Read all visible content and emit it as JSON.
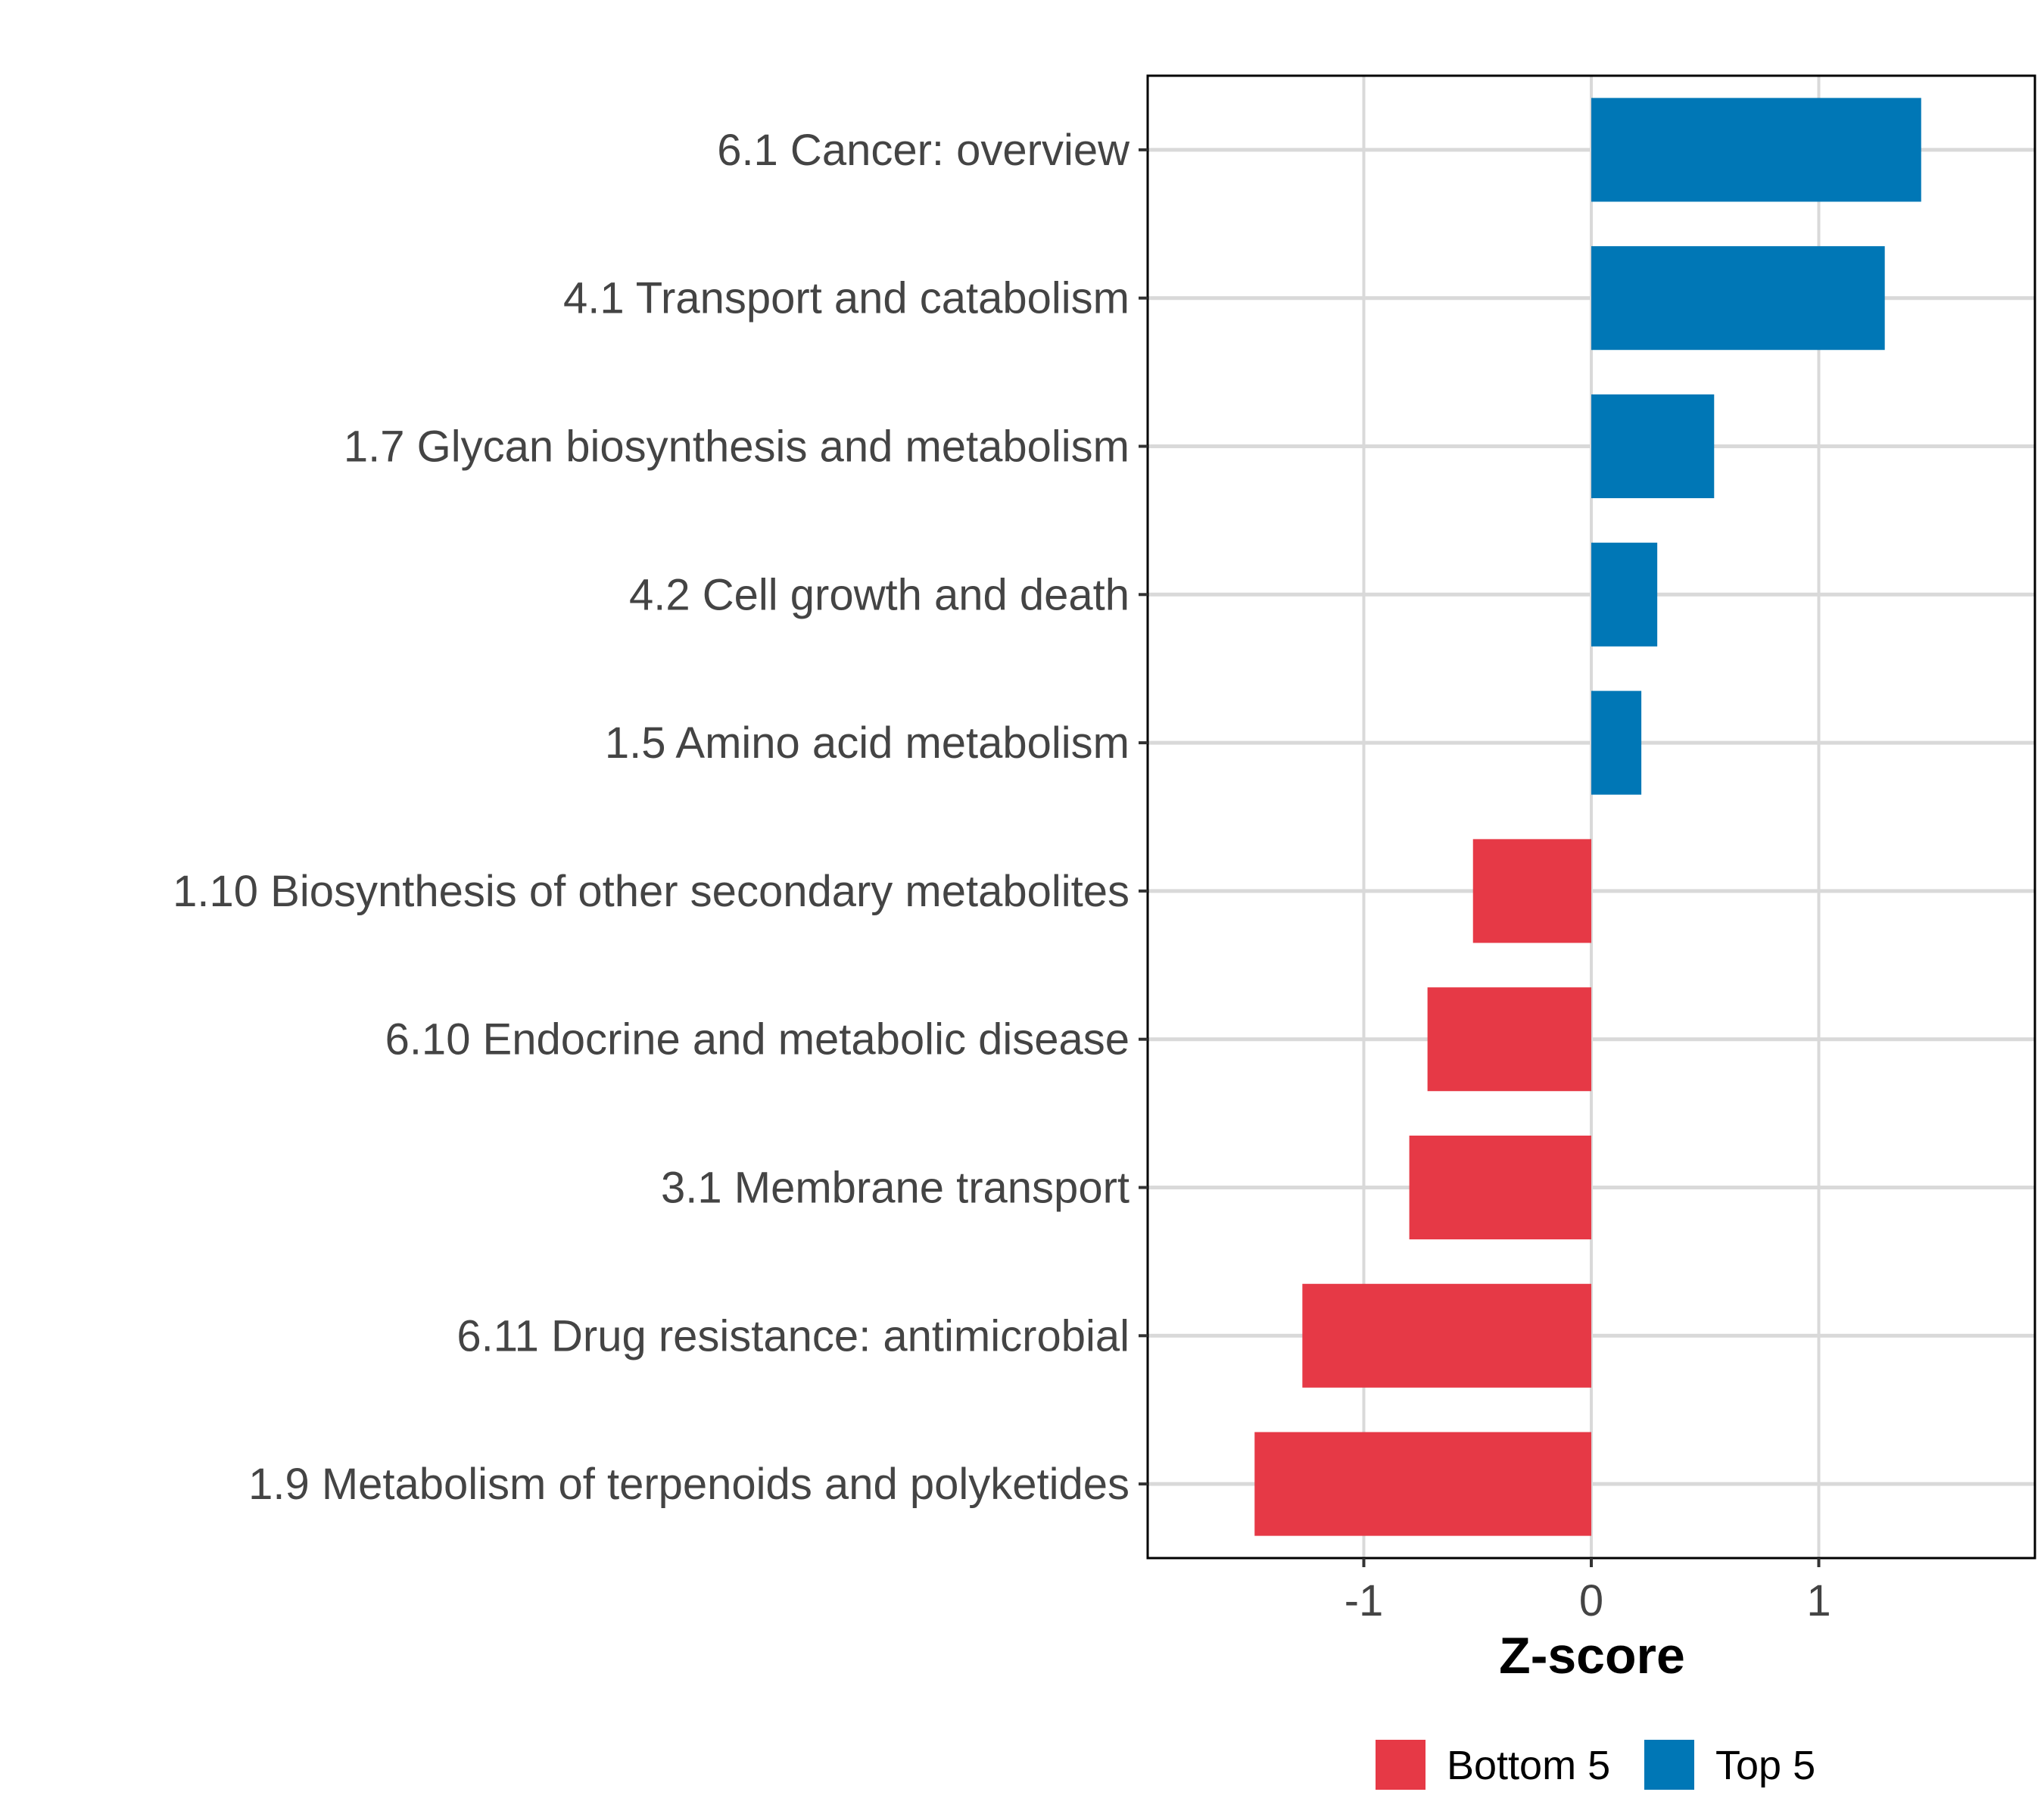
{
  "chart_data": {
    "type": "bar",
    "orientation": "horizontal",
    "title": "",
    "xlabel": "Z-score",
    "ylabel": "",
    "xlim": [
      -1.95,
      1.95
    ],
    "xticks": [
      -1,
      0,
      1
    ],
    "xtick_labels": [
      "-1",
      "0",
      "1"
    ],
    "grid": true,
    "categories": [
      "6.1 Cancer: overview",
      "4.1 Transport and catabolism",
      "1.7 Glycan biosynthesis and metabolism",
      "4.2 Cell growth and death",
      "1.5 Amino acid metabolism",
      "1.10 Biosynthesis of other secondary metabolites",
      "6.10 Endocrine and metabolic disease",
      "3.1 Membrane transport",
      "6.11 Drug resistance: antimicrobial",
      "1.9 Metabolism of terpenoids and polyketides"
    ],
    "values": [
      1.45,
      1.29,
      0.54,
      0.29,
      0.22,
      -0.52,
      -0.72,
      -0.8,
      -1.27,
      -1.48
    ],
    "groups": [
      "Top 5",
      "Top 5",
      "Top 5",
      "Top 5",
      "Top 5",
      "Bottom 5",
      "Bottom 5",
      "Bottom 5",
      "Bottom 5",
      "Bottom 5"
    ],
    "legend": {
      "position": "bottom",
      "entries": [
        {
          "label": "Bottom 5",
          "color": "#E63946"
        },
        {
          "label": "Top 5",
          "color": "#0077B6"
        }
      ]
    }
  }
}
